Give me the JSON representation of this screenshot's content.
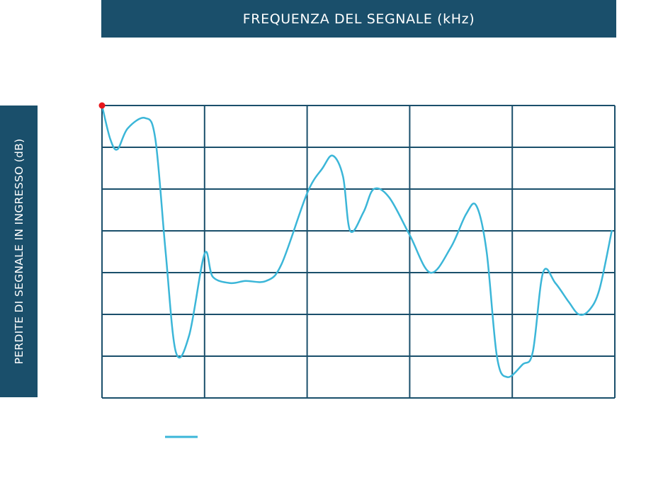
{
  "chart_data": {
    "type": "line",
    "title": "",
    "xlabel": "FREQUENZA DEL SEGNALE (kHz)",
    "ylabel": "PERDITE DI SEGNALE IN INGRESSO (dB)",
    "grid": true,
    "grid_columns": 5,
    "grid_rows": 7,
    "xlim": [
      0,
      5
    ],
    "ylim": [
      0,
      7
    ],
    "legend_position": "bottom-left",
    "colors": {
      "header_bg": "#1a4f6b",
      "grid": "#1a4f6b",
      "series": "#3bb6d8",
      "start_marker": "#e8161b"
    },
    "series": [
      {
        "name": "",
        "color": "#3bb6d8",
        "points": [
          [
            0.0,
            7.0
          ],
          [
            0.08,
            6.2
          ],
          [
            0.15,
            5.95
          ],
          [
            0.25,
            6.45
          ],
          [
            0.42,
            6.7
          ],
          [
            0.52,
            6.2
          ],
          [
            0.62,
            3.5
          ],
          [
            0.72,
            1.1
          ],
          [
            0.85,
            1.5
          ],
          [
            1.0,
            3.45
          ],
          [
            1.08,
            2.9
          ],
          [
            1.25,
            2.75
          ],
          [
            1.4,
            2.8
          ],
          [
            1.6,
            2.8
          ],
          [
            1.75,
            3.2
          ],
          [
            2.0,
            4.9
          ],
          [
            2.15,
            5.5
          ],
          [
            2.25,
            5.8
          ],
          [
            2.35,
            5.3
          ],
          [
            2.42,
            4.0
          ],
          [
            2.55,
            4.45
          ],
          [
            2.65,
            5.0
          ],
          [
            2.8,
            4.8
          ],
          [
            3.0,
            3.9
          ],
          [
            3.2,
            3.0
          ],
          [
            3.4,
            3.6
          ],
          [
            3.55,
            4.4
          ],
          [
            3.65,
            4.6
          ],
          [
            3.75,
            3.5
          ],
          [
            3.85,
            1.0
          ],
          [
            3.95,
            0.5
          ],
          [
            4.1,
            0.8
          ],
          [
            4.2,
            1.1
          ],
          [
            4.3,
            3.0
          ],
          [
            4.42,
            2.75
          ],
          [
            4.55,
            2.3
          ],
          [
            4.65,
            2.0
          ],
          [
            4.75,
            2.1
          ],
          [
            4.85,
            2.6
          ],
          [
            4.97,
            4.0
          ]
        ]
      }
    ]
  }
}
